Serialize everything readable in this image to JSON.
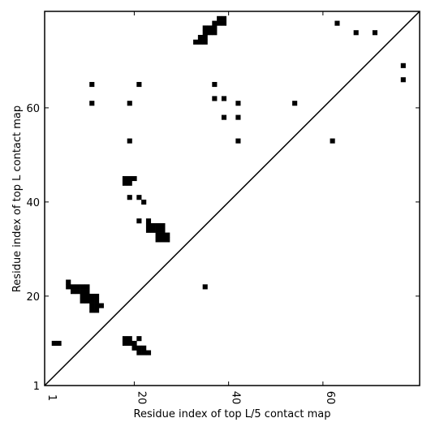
{
  "chart_data": {
    "type": "scatter",
    "xlabel": "Residue index of top L/5 contact map",
    "ylabel": "Residue index of top L contact map",
    "xlim": [
      1,
      80.5
    ],
    "ylim": [
      1,
      80.5
    ],
    "xticks": [
      1,
      20,
      40,
      60
    ],
    "yticks": [
      1,
      20,
      40,
      60
    ],
    "grid": false,
    "diagonal": true,
    "marker": "square",
    "marker_color": "#000000",
    "points": [
      [
        3,
        10
      ],
      [
        4,
        10
      ],
      [
        6,
        22
      ],
      [
        6,
        23
      ],
      [
        7,
        21
      ],
      [
        7,
        22
      ],
      [
        8,
        21
      ],
      [
        8,
        22
      ],
      [
        9,
        19
      ],
      [
        9,
        20
      ],
      [
        9,
        21
      ],
      [
        9,
        22
      ],
      [
        10,
        19
      ],
      [
        10,
        20
      ],
      [
        10,
        21
      ],
      [
        10,
        22
      ],
      [
        11,
        17
      ],
      [
        11,
        18
      ],
      [
        11,
        19
      ],
      [
        11,
        20
      ],
      [
        12,
        17
      ],
      [
        12,
        18
      ],
      [
        12,
        19
      ],
      [
        12,
        20
      ],
      [
        13,
        18
      ],
      [
        18,
        10
      ],
      [
        18,
        11
      ],
      [
        19,
        10
      ],
      [
        19,
        11
      ],
      [
        20,
        9
      ],
      [
        20,
        10
      ],
      [
        21,
        8
      ],
      [
        21,
        9
      ],
      [
        22,
        8
      ],
      [
        22,
        9
      ],
      [
        23,
        8
      ],
      [
        21,
        11
      ],
      [
        18,
        44
      ],
      [
        18,
        45
      ],
      [
        19,
        44
      ],
      [
        19,
        45
      ],
      [
        20,
        45
      ],
      [
        19,
        41
      ],
      [
        21,
        41
      ],
      [
        22,
        40
      ],
      [
        11,
        61
      ],
      [
        11,
        65
      ],
      [
        19,
        61
      ],
      [
        21,
        65
      ],
      [
        19,
        53
      ],
      [
        21,
        36
      ],
      [
        23,
        36
      ],
      [
        23,
        34
      ],
      [
        23,
        35
      ],
      [
        24,
        34
      ],
      [
        24,
        35
      ],
      [
        25,
        34
      ],
      [
        25,
        35
      ],
      [
        26,
        34
      ],
      [
        26,
        35
      ],
      [
        25,
        32
      ],
      [
        25,
        33
      ],
      [
        26,
        32
      ],
      [
        26,
        33
      ],
      [
        27,
        32
      ],
      [
        27,
        33
      ],
      [
        35,
        22
      ],
      [
        33,
        74
      ],
      [
        34,
        74
      ],
      [
        34,
        75
      ],
      [
        35,
        74
      ],
      [
        35,
        75
      ],
      [
        35,
        76
      ],
      [
        35,
        77
      ],
      [
        36,
        76
      ],
      [
        36,
        77
      ],
      [
        37,
        76
      ],
      [
        37,
        77
      ],
      [
        37,
        78
      ],
      [
        38,
        78
      ],
      [
        38,
        79
      ],
      [
        39,
        78
      ],
      [
        39,
        79
      ],
      [
        37,
        62
      ],
      [
        37,
        65
      ],
      [
        39,
        58
      ],
      [
        39,
        62
      ],
      [
        42,
        53
      ],
      [
        42,
        58
      ],
      [
        42,
        61
      ],
      [
        54,
        61
      ],
      [
        62,
        53
      ],
      [
        63,
        78
      ],
      [
        67,
        76
      ],
      [
        71,
        76
      ],
      [
        77,
        66
      ],
      [
        77,
        69
      ]
    ]
  }
}
